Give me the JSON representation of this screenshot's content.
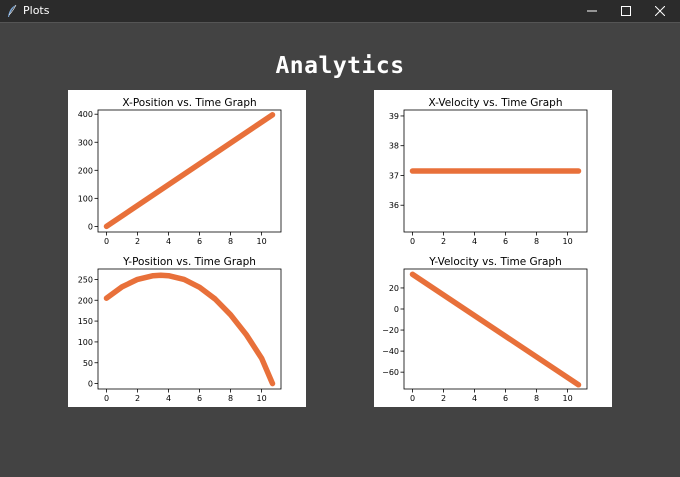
{
  "window": {
    "title": "Plots",
    "icon": "feather-icon",
    "controls": [
      "minimize-icon",
      "maximize-icon",
      "close-icon"
    ]
  },
  "heading": "Analytics",
  "colors": {
    "background": "#434343",
    "titlebar": "#2b2b2b",
    "line": "#e8703a"
  },
  "chart_data": [
    {
      "type": "line",
      "title": "X-Position vs. Time Graph",
      "xlabel": "",
      "ylabel": "",
      "xlim": [
        -0.55,
        11.25
      ],
      "ylim": [
        -20,
        415
      ],
      "xticks": [
        0,
        2,
        4,
        6,
        8,
        10
      ],
      "yticks": [
        0,
        100,
        200,
        300,
        400
      ],
      "series": [
        {
          "x": [
            0,
            10.7
          ],
          "y": [
            0,
            398
          ]
        }
      ]
    },
    {
      "type": "line",
      "title": "X-Velocity vs. Time Graph",
      "xlabel": "",
      "ylabel": "",
      "xlim": [
        -0.55,
        11.25
      ],
      "ylim": [
        35.1,
        39.2
      ],
      "xticks": [
        0,
        2,
        4,
        6,
        8,
        10
      ],
      "yticks": [
        36,
        37,
        38,
        39
      ],
      "series": [
        {
          "x": [
            0,
            10.7
          ],
          "y": [
            37.15,
            37.15
          ]
        }
      ]
    },
    {
      "type": "line",
      "title": "Y-Position vs. Time Graph",
      "xlabel": "",
      "ylabel": "",
      "xlim": [
        -0.55,
        11.25
      ],
      "ylim": [
        -13,
        275
      ],
      "xticks": [
        0,
        2,
        4,
        6,
        8,
        10
      ],
      "yticks": [
        0,
        50,
        100,
        150,
        200,
        250
      ],
      "series": [
        {
          "x": [
            0,
            1,
            2,
            3,
            3.5,
            4,
            5,
            6,
            7,
            8,
            9,
            10,
            10.7
          ],
          "y": [
            205,
            232,
            250,
            259,
            260,
            259,
            250,
            231,
            203,
            165,
            118,
            61,
            0
          ]
        }
      ]
    },
    {
      "type": "line",
      "title": "Y-Velocity vs. Time Graph",
      "xlabel": "",
      "ylabel": "",
      "xlim": [
        -0.55,
        11.25
      ],
      "ylim": [
        -76,
        38
      ],
      "xticks": [
        0,
        2,
        4,
        6,
        8,
        10
      ],
      "yticks": [
        -60,
        -40,
        -20,
        0,
        20
      ],
      "series": [
        {
          "x": [
            0,
            10.7
          ],
          "y": [
            33,
            -72
          ]
        }
      ]
    }
  ]
}
